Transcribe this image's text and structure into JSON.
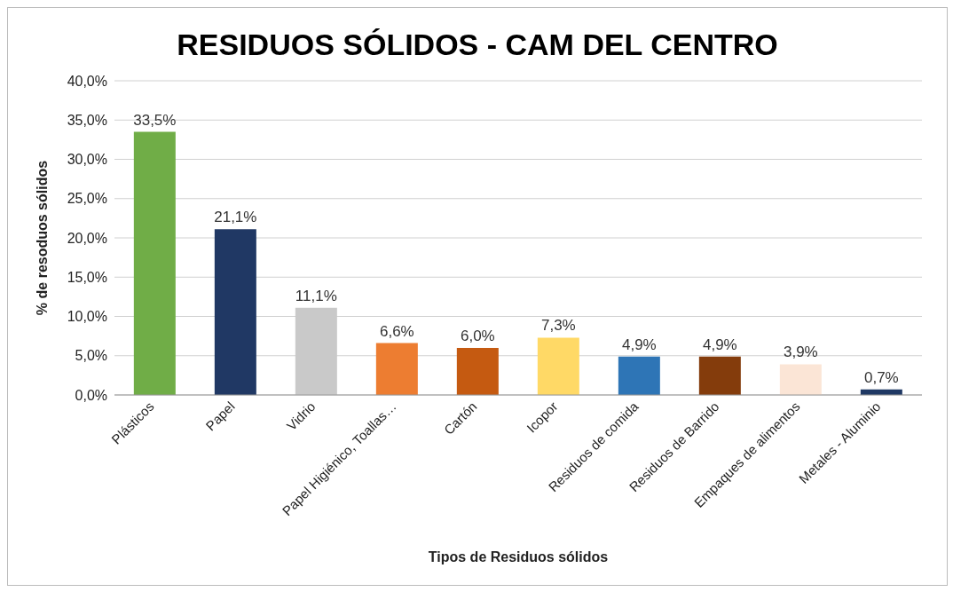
{
  "chart_data": {
    "type": "bar",
    "title": "RESIDUOS SÓLIDOS - CAM DEL CENTRO",
    "xlabel": "Tipos de Residuos sólidos",
    "ylabel": "% de resoduos sólidos",
    "categories": [
      "Plásticos",
      "Papel",
      "Vidrio",
      "Papel Higiénico, Toallas…",
      "Cartón",
      "Icopor",
      "Residuos de comida",
      "Residuos de Barrido",
      "Empaques de alimentos",
      "Metales - Aluminio"
    ],
    "values": [
      33.5,
      21.1,
      11.1,
      6.6,
      6.0,
      7.3,
      4.9,
      4.9,
      3.9,
      0.7
    ],
    "colors": [
      "#70ad47",
      "#203864",
      "#c9c9c9",
      "#ed7d31",
      "#c55a11",
      "#ffd966",
      "#2e75b6",
      "#843c0c",
      "#fbe5d6",
      "#1f3864"
    ],
    "value_labels": [
      "33,5%",
      "21,1%",
      "11,1%",
      "6,6%",
      "6,0%",
      "7,3%",
      "4,9%",
      "4,9%",
      "3,9%",
      "0,7%"
    ],
    "ylim": [
      0,
      40
    ],
    "yticks": [
      {
        "value": 0,
        "label": "0,0%"
      },
      {
        "value": 5,
        "label": "5,0%"
      },
      {
        "value": 10,
        "label": "10,0%"
      },
      {
        "value": 15,
        "label": "15,0%"
      },
      {
        "value": 20,
        "label": "20,0%"
      },
      {
        "value": 25,
        "label": "25,0%"
      },
      {
        "value": 30,
        "label": "30,0%"
      },
      {
        "value": 35,
        "label": "35,0%"
      },
      {
        "value": 40,
        "label": "40,0%"
      }
    ],
    "grid": "y"
  }
}
